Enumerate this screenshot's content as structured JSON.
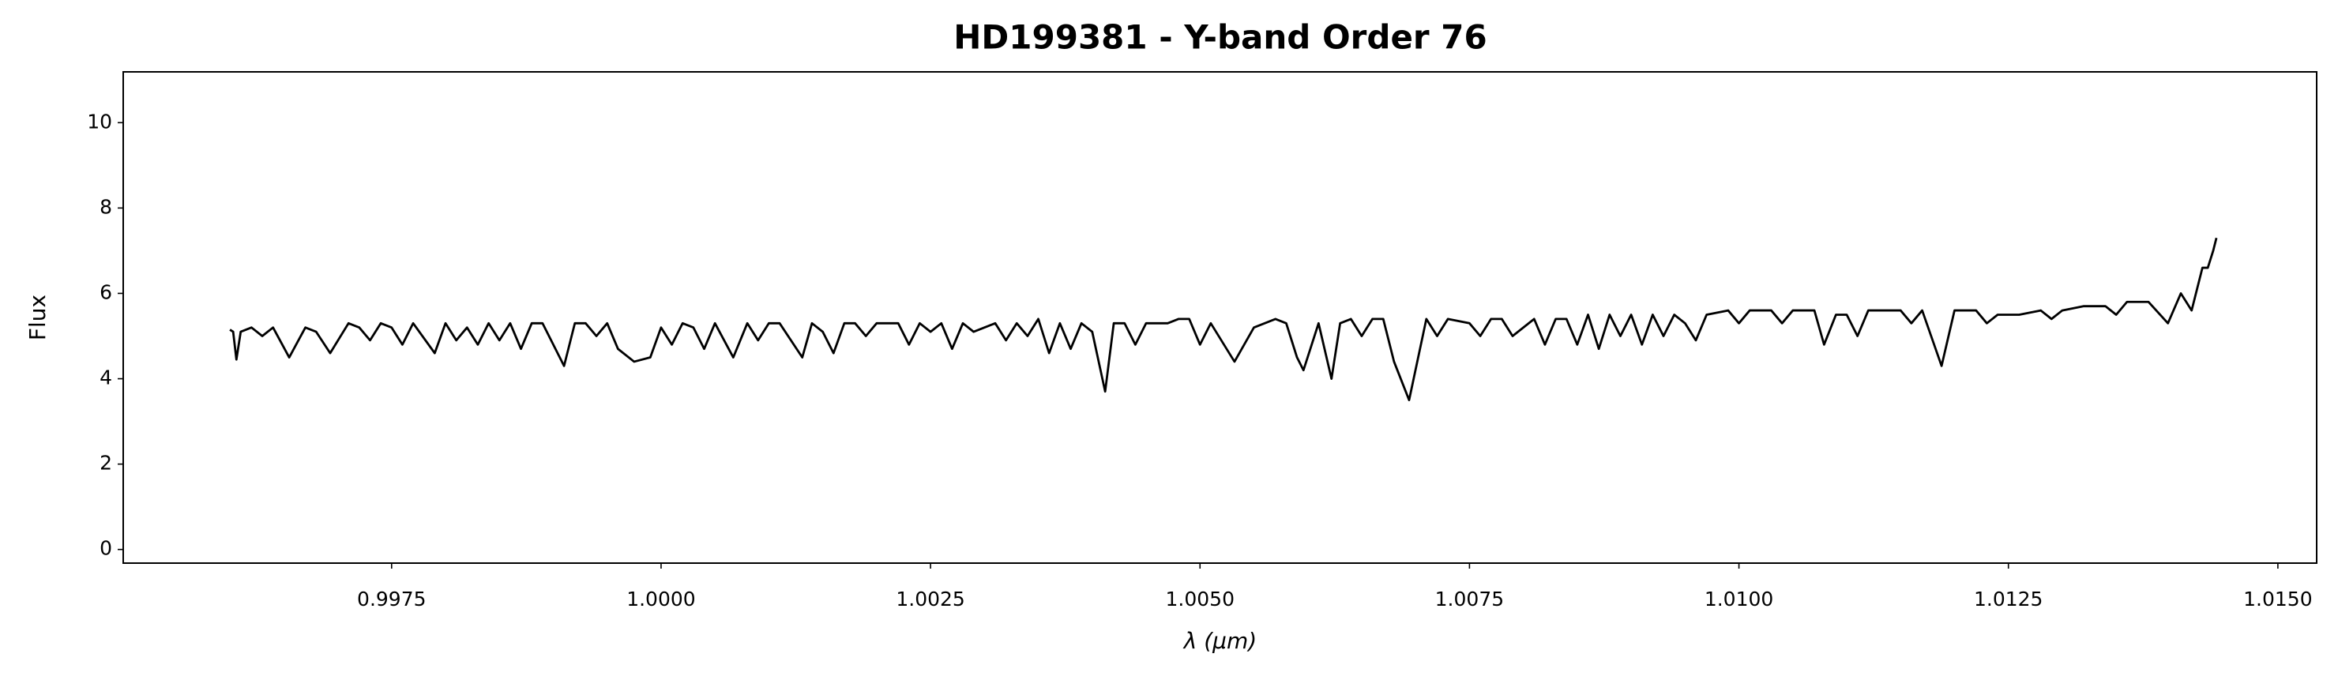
{
  "chart_data": {
    "type": "line",
    "title": "HD199381 - Y-band Order 76",
    "x_label": "λ (μm)",
    "y_label": "Flux",
    "xlim": [
      0.99501,
      1.01536
    ],
    "ylim": [
      -0.32,
      11.19
    ],
    "xticks": [
      0.9975,
      {
        "value": 1.0,
        "label": "1.0000"
      },
      1.0025,
      {
        "value": 1.005,
        "label": "1.0050"
      },
      1.0075,
      {
        "value": 1.01,
        "label": "1.0100"
      },
      1.0125,
      {
        "value": 1.015,
        "label": "1.0150"
      }
    ],
    "yticks": [
      0,
      2,
      4,
      6,
      8,
      10
    ],
    "color": "#000000",
    "x": [
      0.996,
      0.99603,
      0.99606,
      0.9961,
      0.9962,
      0.9963,
      0.9964,
      0.99655,
      0.9967,
      0.9968,
      0.99693,
      0.9971,
      0.9972,
      0.9973,
      0.9974,
      0.9975,
      0.9976,
      0.9977,
      0.9979,
      0.998,
      0.9981,
      0.9982,
      0.9983,
      0.9984,
      0.9985,
      0.9986,
      0.9987,
      0.9988,
      0.9989,
      0.9991,
      0.9992,
      0.9993,
      0.9994,
      0.9995,
      0.9996,
      0.99975,
      0.9999,
      1.0,
      1.0001,
      1.0002,
      1.0003,
      1.0004,
      1.0005,
      1.00067,
      1.0008,
      1.0009,
      1.001,
      1.0011,
      1.00131,
      1.0014,
      1.0015,
      1.0016,
      1.0017,
      1.0018,
      1.0019,
      1.002,
      1.0022,
      1.0023,
      1.0024,
      1.0025,
      1.0026,
      1.0027,
      1.0028,
      1.0029,
      1.0031,
      1.0032,
      1.0033,
      1.0034,
      1.0035,
      1.0036,
      1.0037,
      1.0038,
      1.0039,
      1.004,
      1.00412,
      1.0042,
      1.0043,
      1.0044,
      1.0045,
      1.0047,
      1.0048,
      1.0049,
      1.005,
      1.0051,
      1.00532,
      1.0055,
      1.0057,
      1.0058,
      1.0059,
      1.00596,
      1.0061,
      1.00622,
      1.0063,
      1.0064,
      1.0065,
      1.0066,
      1.0067,
      1.0068,
      1.00694,
      1.0071,
      1.0072,
      1.0073,
      1.0075,
      1.0076,
      1.0077,
      1.0078,
      1.0079,
      1.0081,
      1.0082,
      1.0083,
      1.0084,
      1.0085,
      1.0086,
      1.0087,
      1.0088,
      1.0089,
      1.009,
      1.0091,
      1.0092,
      1.0093,
      1.0094,
      1.0095,
      1.0096,
      1.0097,
      1.0099,
      1.01,
      1.0101,
      1.0103,
      1.0104,
      1.0105,
      1.0107,
      1.01079,
      1.0109,
      1.011,
      1.0111,
      1.0112,
      1.0114,
      1.0115,
      1.0116,
      1.0117,
      1.01188,
      1.012,
      1.0122,
      1.0123,
      1.0124,
      1.0126,
      1.0128,
      1.0129,
      1.013,
      1.0132,
      1.0134,
      1.0135,
      1.0136,
      1.0138,
      1.01398,
      1.0141,
      1.0142,
      1.0143,
      1.01435,
      1.0144,
      1.01443
    ],
    "values": [
      5.15,
      5.1,
      4.45,
      5.1,
      5.2,
      5.0,
      5.2,
      4.5,
      5.2,
      5.1,
      4.6,
      5.3,
      5.2,
      4.9,
      5.3,
      5.2,
      4.8,
      5.3,
      4.6,
      5.3,
      4.9,
      5.2,
      4.8,
      5.3,
      4.9,
      5.3,
      4.7,
      5.3,
      5.3,
      4.3,
      5.3,
      5.3,
      5.0,
      5.3,
      4.7,
      4.4,
      4.5,
      5.2,
      4.8,
      5.3,
      5.2,
      4.7,
      5.3,
      4.5,
      5.3,
      4.9,
      5.3,
      5.3,
      4.5,
      5.3,
      5.1,
      4.6,
      5.3,
      5.3,
      5.0,
      5.3,
      5.3,
      4.8,
      5.3,
      5.1,
      5.3,
      4.7,
      5.3,
      5.1,
      5.3,
      4.9,
      5.3,
      5.0,
      5.4,
      4.6,
      5.3,
      4.7,
      5.3,
      5.1,
      3.7,
      5.3,
      5.3,
      4.8,
      5.3,
      5.3,
      5.4,
      5.4,
      4.8,
      5.3,
      4.4,
      5.2,
      5.4,
      5.3,
      4.5,
      4.2,
      5.3,
      4.0,
      5.3,
      5.4,
      5.0,
      5.4,
      5.4,
      4.4,
      3.5,
      5.4,
      5.0,
      5.4,
      5.3,
      5.0,
      5.4,
      5.4,
      5.0,
      5.4,
      4.8,
      5.4,
      5.4,
      4.8,
      5.5,
      4.7,
      5.5,
      5.0,
      5.5,
      4.8,
      5.5,
      5.0,
      5.5,
      5.3,
      4.9,
      5.5,
      5.6,
      5.3,
      5.6,
      5.6,
      5.3,
      5.6,
      5.6,
      4.8,
      5.5,
      5.5,
      5.0,
      5.6,
      5.6,
      5.6,
      5.3,
      5.6,
      4.3,
      5.6,
      5.6,
      5.3,
      5.5,
      5.5,
      5.6,
      5.4,
      5.6,
      5.7,
      5.7,
      5.5,
      5.8,
      5.8,
      5.3,
      6.0,
      5.6,
      6.6,
      6.6,
      7.0,
      7.3
    ]
  }
}
